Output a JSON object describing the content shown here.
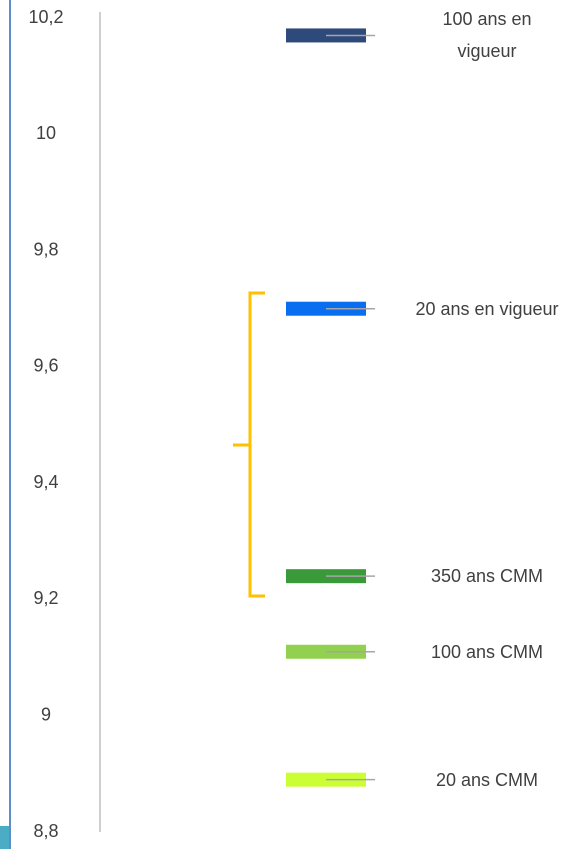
{
  "chart_data": {
    "type": "marker",
    "ylim": [
      8.8,
      10.2
    ],
    "yticks": [
      {
        "value": 8.8,
        "label": "8,8"
      },
      9,
      {
        "value": 9.2,
        "label": "9,2"
      },
      {
        "value": 9.4,
        "label": "9,4"
      },
      {
        "value": 9.6,
        "label": "9,6"
      },
      {
        "value": 9.8,
        "label": "9,8"
      },
      10,
      {
        "value": 10.2,
        "label": "10,2"
      }
    ],
    "series": [
      {
        "name": "100 ans en vigueur",
        "color": "#2e4a7a",
        "values": [
          10.17
        ]
      },
      {
        "name": "20 ans en vigueur",
        "color": "#0a6ef0",
        "values": [
          9.7
        ]
      },
      {
        "name": "350 ans CMM",
        "color": "#3a9a3a",
        "values": [
          9.24
        ]
      },
      {
        "name": "100 ans CMM",
        "color": "#92d050",
        "values": [
          9.11
        ]
      },
      {
        "name": "20 ans CMM",
        "color": "#ccff33",
        "values": [
          8.89
        ]
      }
    ]
  }
}
